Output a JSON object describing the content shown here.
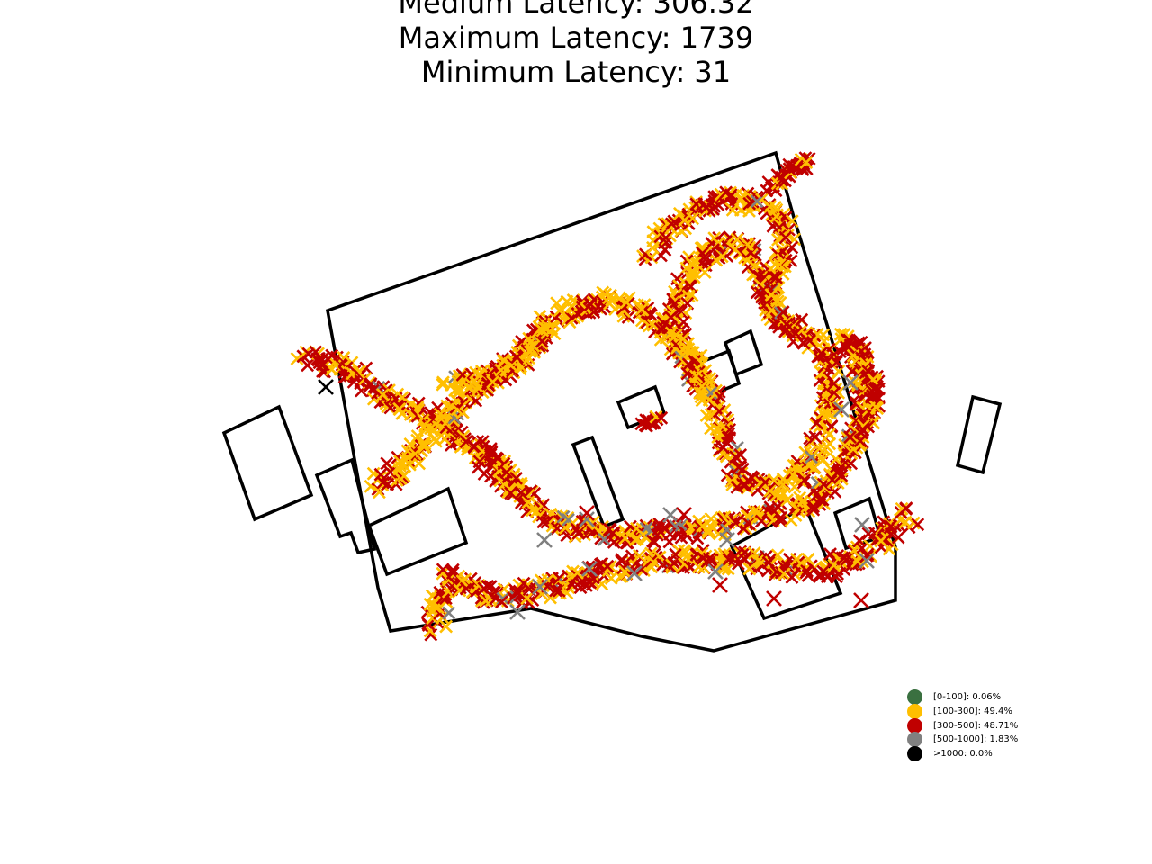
{
  "chart_data": {
    "type": "scatter",
    "title_lines": [
      "Medium Latency: 306.32",
      "Maximum Latency: 1739",
      "Minimum Latency: 31"
    ],
    "legend": [
      {
        "label": "[0-100]: 0.06%",
        "color": "#3a7040"
      },
      {
        "label": "[100-300]: 49.4%",
        "color": "#ffbf00"
      },
      {
        "label": "[300-500]: 48.71%",
        "color": "#c00000"
      },
      {
        "label": "[500-1000]: 1.83%",
        "color": "#808080"
      },
      {
        "label": ">1000: 0.0%",
        "color": "#000000"
      }
    ],
    "legend_placement": "lower-right",
    "marker": "x",
    "axes_visible": false,
    "grid": false
  }
}
